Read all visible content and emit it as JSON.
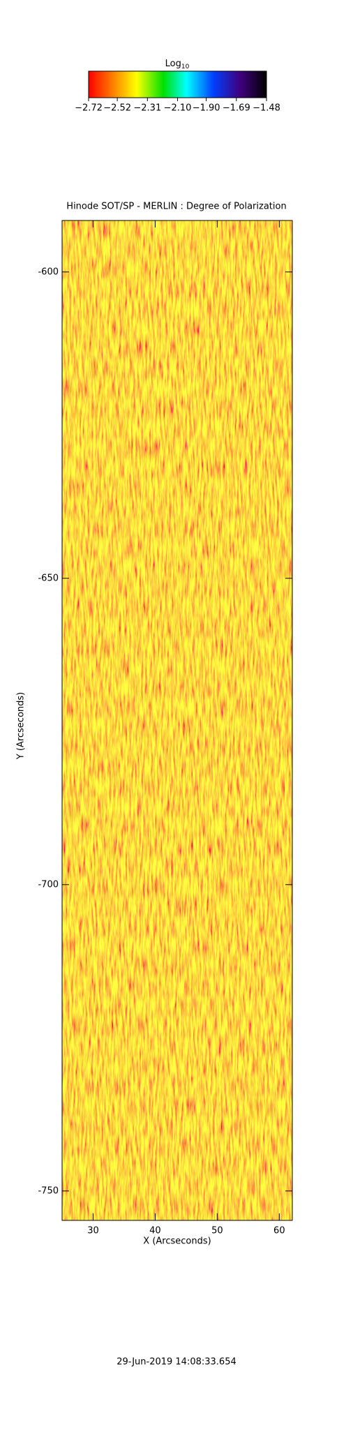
{
  "chart_data": {
    "type": "heatmap",
    "title": "Hinode SOT/SP - MERLIN : Degree of Polarization",
    "xlabel": "X (Arcseconds)",
    "ylabel": "Y (Arcseconds)",
    "xlim": [
      25,
      62.1
    ],
    "xticks": [
      30,
      40,
      50,
      60
    ],
    "ylim": [
      -754.8,
      -591.6
    ],
    "yticks": [
      -600,
      -650,
      -700,
      -750
    ],
    "colorbar_label": "Log",
    "colorbar_label_sub": "10",
    "colorbar_lim": [
      -2.72,
      -1.48
    ],
    "colorbar_ticks": [
      -2.72,
      -2.52,
      -2.31,
      -2.1,
      -1.9,
      -1.69,
      -1.48
    ],
    "footer": "29-Jun-2019 14:08:33.654"
  }
}
